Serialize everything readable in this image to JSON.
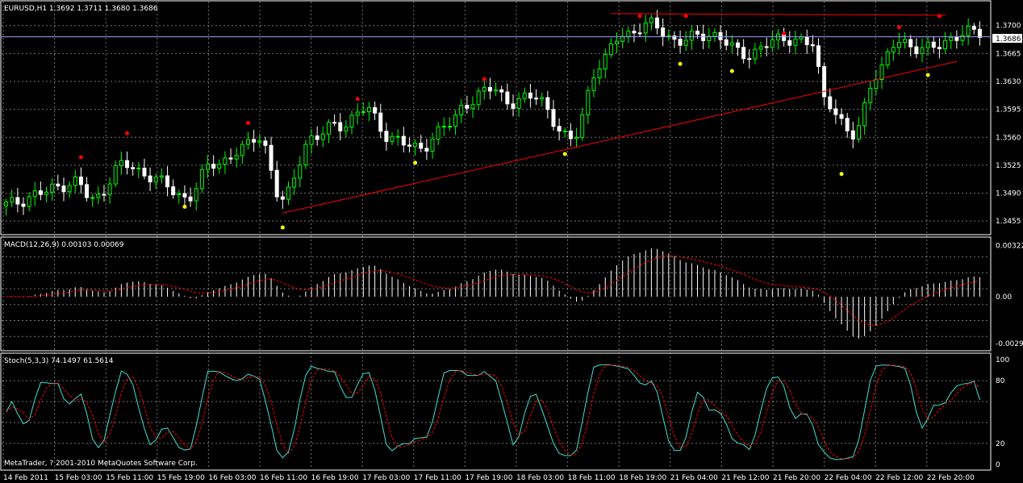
{
  "colors": {
    "background": "#000000",
    "bull_candle": "#00ff00",
    "bear_candle": "#ffffff",
    "trendline": "#ff0000",
    "fractal_up": "#ff0000",
    "fractal_down": "#ffff00",
    "macd_hist": "#ffffff",
    "macd_signal": "#ff0000",
    "stoch_main": "#40e0d0",
    "stoch_signal": "#ff0000",
    "bid_line": "#a0a0ff",
    "bid_label_bg": "#ffffff"
  },
  "chart_data": [
    {
      "type": "candlestick",
      "title": "EURUSD,H1  1.3692 1.3711 1.3680 1.3686",
      "symbol": "EURUSD",
      "timeframe": "H1",
      "ohlc_text": "1.3692 1.3711 1.3680 1.3686",
      "current_price": "1.3686",
      "ylim": [
        1.344,
        1.3728
      ],
      "y_ticks": [
        "1.3700",
        "1.3665",
        "1.3630",
        "1.3595",
        "1.3560",
        "1.3525",
        "1.3490",
        "1.3455"
      ],
      "y_tick_values": [
        1.37,
        1.3665,
        1.363,
        1.3595,
        1.356,
        1.3525,
        1.349,
        1.3455
      ],
      "trend_lines": [
        {
          "from": [
            48,
            1.3465
          ],
          "to": [
            165,
            1.3655
          ]
        },
        {
          "from": [
            105,
            1.3715
          ],
          "to": [
            163,
            1.3713
          ]
        }
      ],
      "fractals_up": [
        [
          13,
          1.3535
        ],
        [
          21,
          1.3565
        ],
        [
          42,
          1.3578
        ],
        [
          61,
          1.3608
        ],
        [
          83,
          1.3633
        ],
        [
          110,
          1.3712
        ],
        [
          118,
          1.3712
        ],
        [
          135,
          1.369
        ],
        [
          155,
          1.3698
        ],
        [
          162,
          1.3712
        ]
      ],
      "fractals_down": [
        [
          31,
          1.3473
        ],
        [
          48,
          1.3447
        ],
        [
          71,
          1.3528
        ],
        [
          97,
          1.3539
        ],
        [
          117,
          1.3652
        ],
        [
          126,
          1.3643
        ],
        [
          145,
          1.3514
        ],
        [
          160,
          1.3638
        ]
      ]
    },
    {
      "type": "histogram",
      "title": "MACD(12,26,9) 0.00103 0.00069",
      "name": "MACD(12,26,9)",
      "values_text": "0.00103 0.00069",
      "ylim": [
        -0.0033,
        0.0036
      ],
      "y_ticks": [
        "0.00322",
        "0.00",
        "-0.00294"
      ],
      "y_tick_values": [
        0.00322,
        0.0,
        -0.00294
      ]
    },
    {
      "type": "line",
      "title": "Stoch(5,3,3) 74.1497 61.5614",
      "name": "Stoch(5,3,3)",
      "values_text": "74.1497 61.5614",
      "ylim": [
        -4,
        104
      ],
      "y_ticks": [
        "100",
        "80",
        "20",
        "0"
      ],
      "y_tick_values": [
        100,
        80,
        20,
        0
      ]
    }
  ],
  "x_axis": {
    "labels": [
      "14 Feb 2011",
      "15 Feb 03:00",
      "15 Feb 11:00",
      "15 Feb 19:00",
      "16 Feb 03:00",
      "16 Feb 11:00",
      "16 Feb 19:00",
      "17 Feb 03:00",
      "17 Feb 11:00",
      "17 Feb 19:00",
      "18 Feb 03:00",
      "18 Feb 11:00",
      "18 Feb 19:00",
      "21 Feb 04:00",
      "21 Feb 12:00",
      "21 Feb 20:00",
      "22 Feb 04:00",
      "22 Feb 12:00",
      "22 Feb 20:00"
    ]
  },
  "footer": "MetaTrader, ? 2001-2010 MetaQuotes Software Corp."
}
